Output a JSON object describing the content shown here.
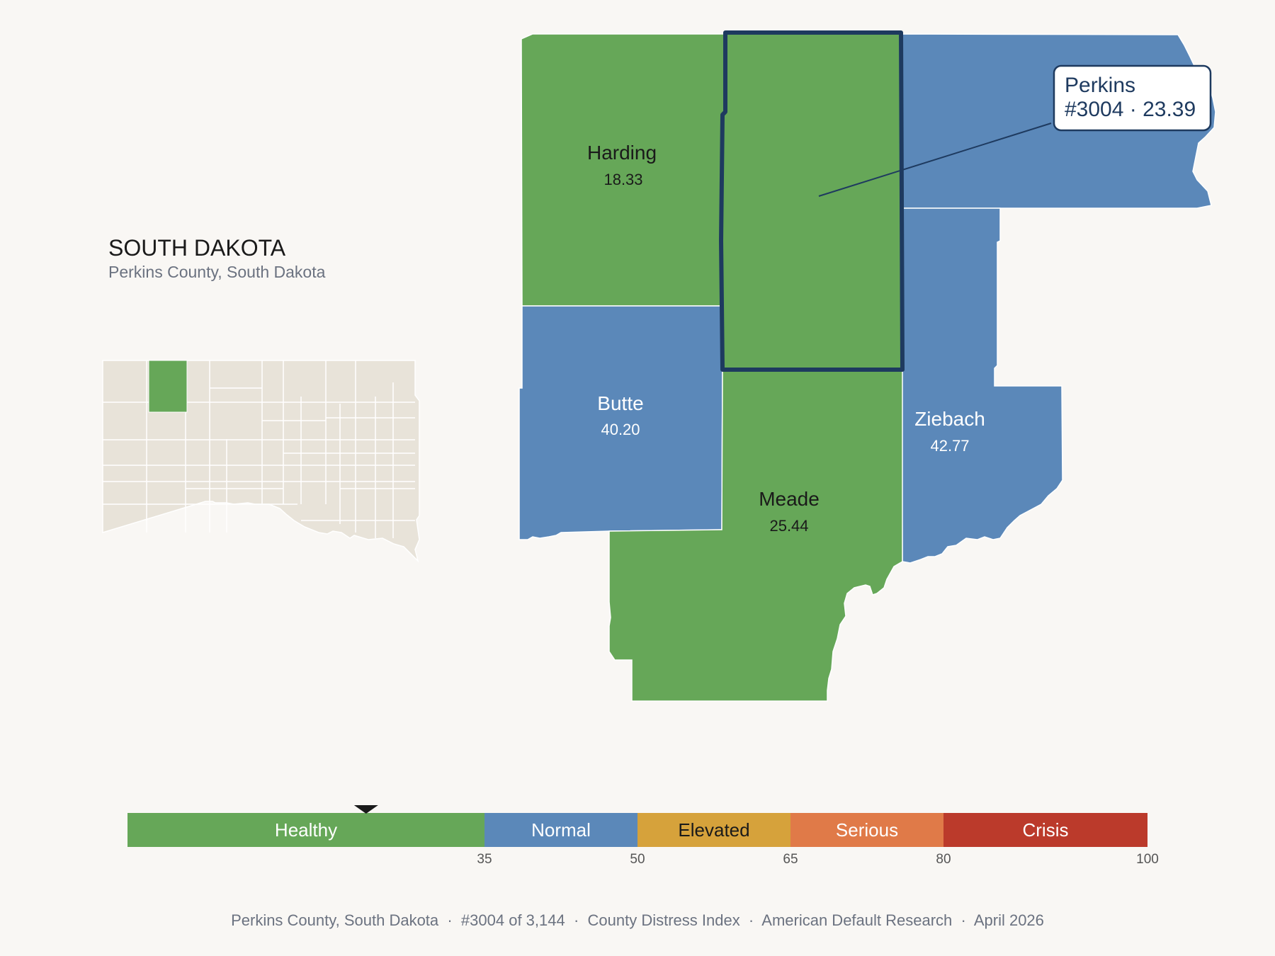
{
  "state": {
    "title": "SOUTH DAKOTA",
    "subtitle": "Perkins County, South Dakota"
  },
  "counties": [
    {
      "id": "harding",
      "name": "Harding",
      "value": "18.33",
      "category": "Healthy"
    },
    {
      "id": "perkins",
      "name": "Perkins",
      "value": "23.39",
      "category": "Healthy",
      "highlighted": true
    },
    {
      "id": "butte",
      "name": "Butte",
      "value": "40.20",
      "category": "Normal"
    },
    {
      "id": "meade",
      "name": "Meade",
      "value": "25.44",
      "category": "Healthy"
    },
    {
      "id": "ziebach",
      "name": "Ziebach",
      "value": "42.77",
      "category": "Normal"
    },
    {
      "id": "corson",
      "name": "",
      "value": "",
      "category": "Normal"
    }
  ],
  "callout": {
    "line1": "Perkins",
    "line2": "#3004 · 23.39"
  },
  "legend": {
    "marker_value": 23.39,
    "segments": [
      {
        "label": "Healthy",
        "from": 0,
        "to": 35,
        "color": "#66a758",
        "text_color": "#ffffff"
      },
      {
        "label": "Normal",
        "from": 35,
        "to": 50,
        "color": "#5b88b9",
        "text_color": "#ffffff"
      },
      {
        "label": "Elevated",
        "from": 50,
        "to": 65,
        "color": "#d6a23b",
        "text_color": "#1a1a1a"
      },
      {
        "label": "Serious",
        "from": 65,
        "to": 80,
        "color": "#e07a48",
        "text_color": "#ffffff"
      },
      {
        "label": "Crisis",
        "from": 80,
        "to": 100,
        "color": "#bb3a2b",
        "text_color": "#ffffff"
      }
    ],
    "ticks": [
      "35",
      "50",
      "65",
      "80",
      "100"
    ]
  },
  "footer": {
    "text": "Perkins County, South Dakota  ·  #3004 of 3,144  ·  County Distress Index  ·  American Default Research  ·  April 2026"
  },
  "colors": {
    "healthy": "#66a758",
    "normal": "#5b88b9",
    "highlight_border": "#1e3a5f",
    "inset_fill": "#e8e3d9",
    "background": "#f9f7f4"
  }
}
